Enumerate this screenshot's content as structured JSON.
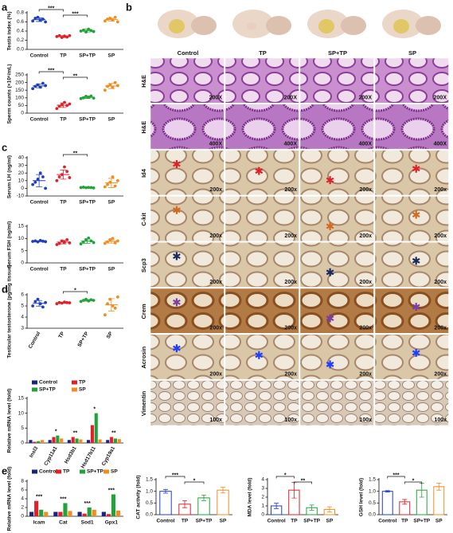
{
  "panels": [
    "a",
    "b",
    "c",
    "d",
    "e"
  ],
  "chart_data": [
    {
      "type": "dotplot",
      "ylabel": "Testis index (%)",
      "categories": [
        "Control",
        "TP",
        "SP+TP",
        "SP"
      ],
      "colors": [
        "#1f3fbf",
        "#e0202a",
        "#22a33a",
        "#f28c1e"
      ],
      "values": [
        [
          0.62,
          0.68,
          0.7,
          0.64,
          0.66,
          0.6
        ],
        [
          0.28,
          0.3,
          0.26,
          0.29,
          0.27,
          0.3
        ],
        [
          0.4,
          0.42,
          0.38,
          0.44,
          0.41,
          0.39
        ],
        [
          0.62,
          0.66,
          0.68,
          0.64,
          0.7,
          0.6
        ]
      ],
      "means": [
        0.65,
        0.28,
        0.41,
        0.65
      ],
      "sd": [
        0.04,
        0.02,
        0.03,
        0.03
      ],
      "ylim": [
        0,
        0.8
      ],
      "yticks": [
        {
          "value": 0,
          "label": "0.0"
        },
        0.2,
        0.4,
        0.6,
        0.8
      ],
      "significance": [
        {
          "from": "Control",
          "to": "TP",
          "label": "***"
        },
        {
          "from": "TP",
          "to": "SP+TP",
          "label": "***"
        }
      ]
    },
    {
      "type": "dotplot",
      "ylabel": "Sperm counts (×10⁶/mL)",
      "categories": [
        "Control",
        "TP",
        "SP+TP",
        "SP"
      ],
      "colors": [
        "#1f3fbf",
        "#e0202a",
        "#22a33a",
        "#f28c1e"
      ],
      "values": [
        [
          160,
          175,
          185,
          170,
          195,
          180
        ],
        [
          30,
          45,
          55,
          70,
          50,
          60
        ],
        [
          95,
          100,
          110,
          105,
          112,
          98
        ],
        [
          150,
          175,
          185,
          170,
          200,
          180
        ]
      ],
      "means": [
        178,
        52,
        103,
        177
      ],
      "sd": [
        12,
        15,
        7,
        17
      ],
      "ylim": [
        0,
        250
      ],
      "yticks": [
        0,
        50,
        100,
        150,
        200,
        250
      ],
      "significance": [
        {
          "from": "Control",
          "to": "TP",
          "label": "***"
        },
        {
          "from": "TP",
          "to": "SP+TP",
          "label": "**"
        }
      ]
    },
    {
      "type": "dotplot",
      "ylabel": "Serum LH (ng/ml)",
      "categories": [
        "Control",
        "TP",
        "SP+TP",
        "SP"
      ],
      "colors": [
        "#1f3fbf",
        "#e0202a",
        "#22a33a",
        "#f28c1e"
      ],
      "values": [
        [
          5,
          8,
          12,
          20,
          15,
          0
        ],
        [
          10,
          15,
          18,
          28,
          22,
          14
        ],
        [
          1,
          1.5,
          0.8,
          1.2,
          1,
          0.5
        ],
        [
          2,
          5,
          8,
          15,
          3,
          10
        ]
      ],
      "means": [
        10,
        18,
        1,
        7
      ],
      "sd": [
        8,
        6,
        0.3,
        6
      ],
      "ylim": [
        -10,
        40
      ],
      "yticks": [
        -10,
        0,
        10,
        20,
        30,
        40
      ],
      "significance": [
        {
          "from": "TP",
          "to": "SP+TP",
          "label": "**"
        }
      ]
    },
    {
      "type": "dotplot",
      "ylabel": "Serum FSH (ng/ml)",
      "categories": [
        "Control",
        "TP",
        "SP+TP",
        "SP"
      ],
      "colors": [
        "#1f3fbf",
        "#e0202a",
        "#22a33a",
        "#f28c1e"
      ],
      "values": [
        [
          8.8,
          9,
          8.6,
          9.2,
          8.9,
          8.7
        ],
        [
          7.5,
          8,
          9,
          8.5,
          9.5,
          8.2
        ],
        [
          7.8,
          8.5,
          9.5,
          10.2,
          9,
          8.3
        ],
        [
          8,
          8.6,
          9.5,
          10,
          8.2,
          9
        ]
      ],
      "means": [
        8.9,
        8.5,
        8.9,
        8.9
      ],
      "sd": [
        0.2,
        0.7,
        0.9,
        0.8
      ],
      "ylim": [
        0,
        15
      ],
      "yticks": [
        0,
        5,
        10,
        15
      ],
      "significance": []
    },
    {
      "type": "dotplot",
      "ylabel": "Testicular testosterone (pg/mg tissue)",
      "categories": [
        "Control",
        "TP",
        "SP+TP",
        "SP"
      ],
      "colors": [
        "#1f3fbf",
        "#e0202a",
        "#22a33a",
        "#f28c1e"
      ],
      "values": [
        [
          5.0,
          5.4,
          5.6,
          5.2,
          4.9,
          5.3
        ],
        [
          5.2,
          5.3,
          5.25,
          5.35,
          5.3,
          5.28
        ],
        [
          5.4,
          5.5,
          5.6,
          5.45,
          5.55,
          5.5
        ],
        [
          4.2,
          5.2,
          5.6,
          5.0,
          4.8,
          5.8
        ]
      ],
      "means": [
        5.23,
        5.28,
        5.5,
        5.1
      ],
      "sd": [
        0.25,
        0.05,
        0.07,
        0.55
      ],
      "ylim": [
        3,
        6
      ],
      "yticks": [
        3,
        4,
        5,
        6
      ],
      "significance": [
        {
          "from": "TP",
          "to": "SP+TP",
          "label": "*"
        }
      ]
    },
    {
      "type": "grouped_bar",
      "ylabel": "Relative mRNA level (fold)",
      "categories": [
        "Insl3",
        "Cyp11a1",
        "Hsd3b1",
        "Hsd17b11",
        "Cyp19a1"
      ],
      "series": [
        {
          "name": "Control",
          "color": "#1a237e",
          "values": [
            1,
            1,
            1,
            1,
            1
          ]
        },
        {
          "name": "TP",
          "color": "#e0202a",
          "values": [
            0.4,
            2,
            2,
            6,
            2
          ]
        },
        {
          "name": "SP+TP",
          "color": "#22a33a",
          "values": [
            0.6,
            2.5,
            1.5,
            10,
            1.5
          ]
        },
        {
          "name": "SP",
          "color": "#f28c1e",
          "values": [
            1,
            1.5,
            1.2,
            1.2,
            1.3
          ]
        }
      ],
      "ylim": [
        0,
        15
      ],
      "yticks": [
        0,
        5,
        10,
        15
      ],
      "annotations": [
        {
          "category": "Cyp11a1",
          "label": "*"
        },
        {
          "category": "Hsd3b1",
          "label": "**"
        },
        {
          "category": "Hsd17b11",
          "label": "*"
        },
        {
          "category": "Cyp19a1",
          "label": "**"
        }
      ]
    },
    {
      "type": "grouped_bar",
      "ylabel": "Relative mRNA level (fold)",
      "categories": [
        "Icam",
        "Cat",
        "Sod1",
        "Gpx1"
      ],
      "series": [
        {
          "name": "Control",
          "color": "#1a237e",
          "values": [
            1,
            1,
            1,
            1
          ]
        },
        {
          "name": "TP",
          "color": "#e0202a",
          "values": [
            3.5,
            1,
            0.6,
            0.5
          ]
        },
        {
          "name": "SP+TP",
          "color": "#22a33a",
          "values": [
            1.5,
            3,
            2,
            5
          ]
        },
        {
          "name": "SP",
          "color": "#f28c1e",
          "values": [
            1,
            1.2,
            1.5,
            1.3
          ]
        }
      ],
      "ylim": [
        0,
        8
      ],
      "yticks": [
        0,
        2,
        4,
        6,
        8
      ],
      "annotations": [
        {
          "category": "Icam",
          "label": "***"
        },
        {
          "category": "Cat",
          "label": "***"
        },
        {
          "category": "Sod1",
          "label": "***"
        },
        {
          "category": "Gpx1",
          "label": "***"
        }
      ]
    },
    {
      "type": "bar",
      "ylabel": "CAT activity (fold)",
      "categories": [
        "Control",
        "TP",
        "SP+TP",
        "SP"
      ],
      "colors": [
        "#1f3fbf",
        "#e0202a",
        "#22a33a",
        "#f28c1e"
      ],
      "values": [
        1.0,
        0.45,
        0.72,
        1.05
      ],
      "sd": [
        0.08,
        0.15,
        0.12,
        0.12
      ],
      "ylim": [
        0,
        1.5
      ],
      "yticks": [
        {
          "value": 0,
          "label": "0.0"
        },
        0.5,
        {
          "value": 1,
          "label": "1.0"
        },
        1.5
      ],
      "significance": [
        {
          "from": "Control",
          "to": "TP",
          "label": "***"
        },
        {
          "from": "TP",
          "to": "SP+TP",
          "label": "*"
        }
      ]
    },
    {
      "type": "bar",
      "ylabel": "MDA level (fold)",
      "categories": [
        "Control",
        "TP",
        "SP+TP",
        "SP"
      ],
      "colors": [
        "#1f3fbf",
        "#e0202a",
        "#22a33a",
        "#f28c1e"
      ],
      "values": [
        1,
        2.8,
        0.8,
        0.6
      ],
      "sd": [
        0.3,
        0.9,
        0.3,
        0.3
      ],
      "ylim": [
        0,
        4
      ],
      "yticks": [
        0,
        1,
        2,
        3,
        4
      ],
      "significance": [
        {
          "from": "Control",
          "to": "TP",
          "label": "*"
        },
        {
          "from": "TP",
          "to": "SP+TP",
          "label": "**"
        }
      ]
    },
    {
      "type": "bar",
      "ylabel": "GSH level (fold)",
      "categories": [
        "Control",
        "TP",
        "SP+TP",
        "SP"
      ],
      "colors": [
        "#1f3fbf",
        "#e0202a",
        "#22a33a",
        "#f28c1e"
      ],
      "values": [
        1,
        0.55,
        1.05,
        1.2
      ],
      "sd": [
        0.03,
        0.1,
        0.3,
        0.15
      ],
      "ylim": [
        0,
        1.5
      ],
      "yticks": [
        {
          "value": 0,
          "label": "0.0"
        },
        0.5,
        {
          "value": 1,
          "label": "1.0"
        },
        1.5
      ],
      "significance": [
        {
          "from": "Control",
          "to": "TP",
          "label": "***"
        },
        {
          "from": "TP",
          "to": "SP+TP",
          "label": "*"
        }
      ]
    }
  ],
  "micrographs": {
    "columns": [
      "Control",
      "TP",
      "SP+TP",
      "SP"
    ],
    "rows": [
      {
        "stain": "H&E",
        "magnification": "200X"
      },
      {
        "stain": "H&E",
        "magnification": "400X"
      },
      {
        "stain": "Id4",
        "magnification": "200x",
        "marker_color": "#e0202a",
        "markers": [
          "Control",
          "TP",
          "SP+TP",
          "SP"
        ]
      },
      {
        "stain": "C-kit",
        "magnification": "200x",
        "marker_color": "#d2691e",
        "markers": [
          "Control",
          "SP+TP",
          "SP"
        ]
      },
      {
        "stain": "Scp3",
        "magnification": "200x",
        "marker_color": "#1a2a5e",
        "markers": [
          "Control",
          "SP+TP",
          "SP"
        ]
      },
      {
        "stain": "Crem",
        "magnification": "200x",
        "marker_color": "#7b3fa0",
        "markers": [
          "Control",
          "SP+TP",
          "SP"
        ]
      },
      {
        "stain": "Acrosin",
        "magnification": "200x",
        "marker_color": "#1f3fff",
        "markers": [
          "Control",
          "TP",
          "SP+TP",
          "SP"
        ]
      },
      {
        "stain": "Vimentin",
        "magnification": "100x"
      }
    ]
  }
}
